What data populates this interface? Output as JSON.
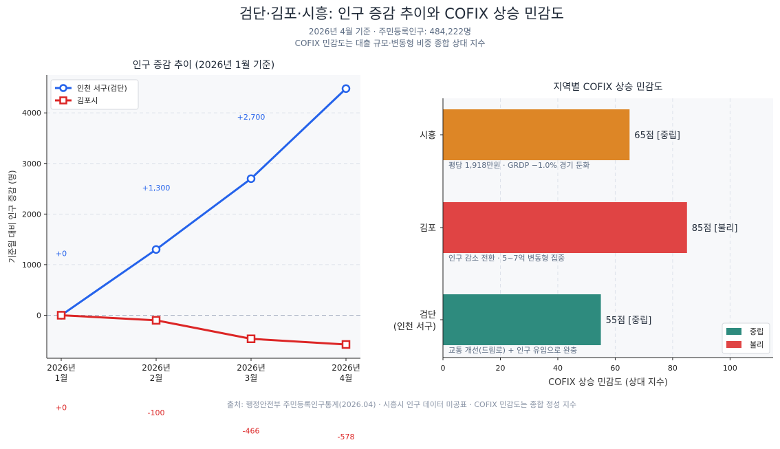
{
  "header": {
    "title": "검단·김포·시흥: 인구 증감 추이와 COFIX 상승 민감도",
    "subtitle_1": "2026년 4월 기준 · 주민등록인구: 484,222명",
    "subtitle_2": "COFIX 민감도는 대출 규모·변동형 비중 종합 상대 지수"
  },
  "footer": {
    "source": "출처: 행정안전부 주민등록인구통계(2026.04) · 시흥시 인구 데이터 미공표 · COFIX 민감도는 종합 정성 지수"
  },
  "colors": {
    "incheon": "#2563eb",
    "gimpo_line": "#dc2626",
    "neutral": "#2e8b7e",
    "unfavorable": "#e04444",
    "siheung": "#dd8626"
  },
  "chart_data": [
    {
      "type": "line",
      "title": "인구 증감 추이 (2026년 1월 기준)",
      "xlabel": "",
      "ylabel": "기준월 대비 인구 증감 (명)",
      "categories": [
        "2026년\n1월",
        "2026년\n2월",
        "2026년\n3월",
        "2026년\n4월"
      ],
      "ylim": [
        -850,
        4750
      ],
      "yticks": [
        0,
        1000,
        2000,
        3000,
        4000
      ],
      "grid": true,
      "legend": "top-left",
      "series": [
        {
          "name": "인천 서구(검단)",
          "values": [
            0,
            1300,
            2700,
            4480
          ],
          "labels": [
            "+0",
            "+1,300",
            "+2,700",
            ""
          ],
          "color": "#2563eb",
          "marker": "circle"
        },
        {
          "name": "김포시",
          "values": [
            0,
            -100,
            -466,
            -578
          ],
          "labels": [
            "+0",
            "-100",
            "-466",
            "-578"
          ],
          "color": "#dc2626",
          "marker": "square"
        }
      ]
    },
    {
      "type": "bar",
      "orientation": "horizontal",
      "title": "지역별 COFIX 상승 민감도",
      "xlabel": "COFIX 상승 민감도 (상대 지수)",
      "ylabel": "",
      "xlim": [
        0,
        115
      ],
      "xticks": [
        0,
        20,
        40,
        60,
        80,
        100
      ],
      "grid": true,
      "legend": "bottom-right",
      "legend_items": [
        {
          "label": "중립",
          "color": "#2e8b7e"
        },
        {
          "label": "불리",
          "color": "#e04444"
        }
      ],
      "bars": [
        {
          "category": "시흥",
          "value": 65,
          "value_label": "65점  [중립]",
          "note": "평당 1,918만원 · GRDP −1.0% 경기 둔화",
          "color": "#dd8626"
        },
        {
          "category": "김포",
          "value": 85,
          "value_label": "85점  [불리]",
          "note": "인구 감소 전환 · 5~7억 변동형 집중",
          "color": "#e04444"
        },
        {
          "category": "검단\n(인천 서구)",
          "value": 55,
          "value_label": "55점  [중립]",
          "note": "교통 개선(드림로) + 인구 유입으로 완충",
          "color": "#2e8b7e"
        }
      ]
    }
  ]
}
